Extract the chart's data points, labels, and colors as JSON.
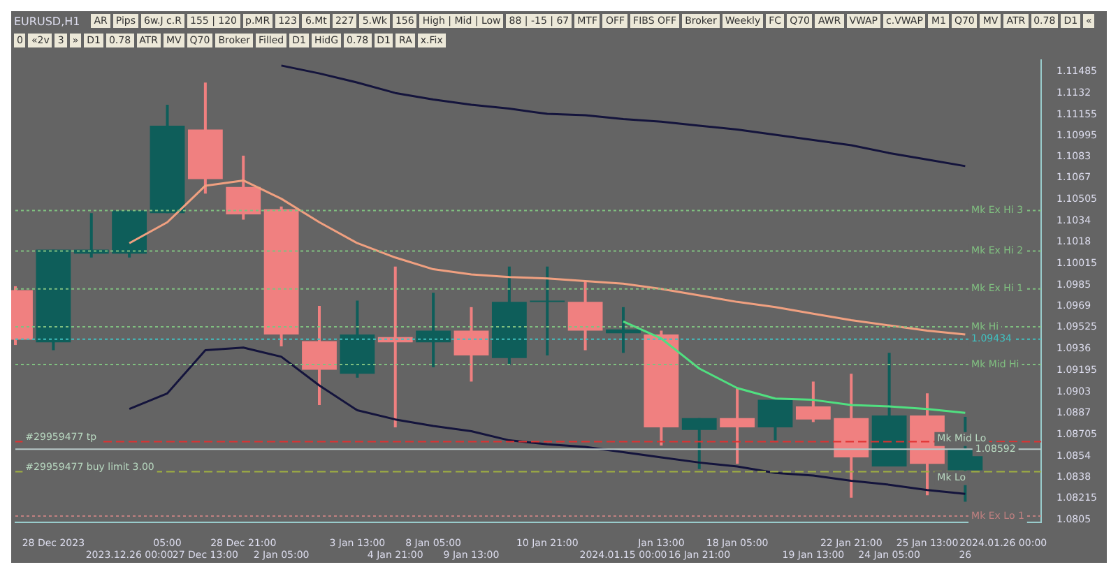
{
  "chart_data": {
    "type": "candlestick",
    "title": "EURUSD,H1",
    "categories": [
      null,
      "28 Dec 2023",
      null,
      "2023.12.26 00:00",
      "05:00",
      "27 Dec 13:00",
      "28 Dec 21:00",
      "2 Jan 05:00",
      null,
      "3 Jan 13:00",
      "4 Jan 21:00",
      "8 Jan 05:00",
      "9 Jan 13:00",
      null,
      "10 Jan 21:00",
      null,
      "2024.01.15 00:00",
      "Jan 13:00",
      "16 Jan 21:00",
      "18 Jan 05:00",
      null,
      "19 Jan 13:00",
      "22 Jan 21:00",
      "24 Jan 05:00",
      "25 Jan 13:00",
      "26",
      "2024.01.26 00:00",
      null
    ],
    "ohlc": [
      [
        1.0981,
        1.0984,
        1.0939,
        1.0943
      ],
      [
        1.0941,
        1.1012,
        1.0935,
        1.1012
      ],
      [
        1.1009,
        1.104,
        1.1006,
        1.1012
      ],
      [
        1.1009,
        1.1042,
        1.1006,
        1.1042
      ],
      [
        1.104,
        1.1123,
        1.104,
        1.1107
      ],
      [
        1.1104,
        1.114,
        1.1055,
        1.1066
      ],
      [
        1.106,
        1.1084,
        1.1035,
        1.1039
      ],
      [
        1.1043,
        1.1045,
        1.0938,
        1.0947
      ],
      [
        1.0942,
        1.0969,
        1.0893,
        1.092
      ],
      [
        1.0917,
        1.0973,
        1.0914,
        1.0947
      ],
      [
        1.0945,
        1.0999,
        1.0876,
        1.0941
      ],
      [
        1.0941,
        1.0979,
        1.0922,
        1.095
      ],
      [
        1.095,
        1.0968,
        1.0911,
        1.0931
      ],
      [
        1.0929,
        1.0999,
        1.0924,
        1.0972
      ],
      [
        1.0972,
        1.0999,
        1.0931,
        1.0973
      ],
      [
        1.0972,
        1.0988,
        1.0935,
        1.095
      ],
      [
        1.0948,
        1.0968,
        1.0933,
        1.0951
      ],
      [
        1.0947,
        1.095,
        1.0862,
        1.0876
      ],
      [
        1.0874,
        1.0883,
        1.0844,
        1.0883
      ],
      [
        1.0883,
        1.0906,
        1.0848,
        1.0876
      ],
      [
        1.0876,
        1.0897,
        1.0866,
        1.0897
      ],
      [
        1.0892,
        1.0911,
        1.088,
        1.0882
      ],
      [
        1.0883,
        1.0917,
        1.0822,
        1.0853
      ],
      [
        1.0846,
        1.0933,
        1.0846,
        1.0885
      ],
      [
        1.0885,
        1.0902,
        1.0824,
        1.0848
      ],
      [
        1.0843,
        1.0884,
        1.0819,
        1.0859
      ],
      null,
      null
    ],
    "colors": [
      "#f08080",
      "#0e5e5a",
      "#0e5e5a",
      "#0e5e5a",
      "#0e5e5a",
      "#f08080",
      "#f08080",
      "#f08080",
      "#f08080",
      "#0e5e5a",
      "#f08080",
      "#0e5e5a",
      "#f08080",
      "#0e5e5a",
      "#0e5e5a",
      "#f08080",
      "#0e5e5a",
      "#f08080",
      "#0e5e5a",
      "#f08080",
      "#0e5e5a",
      "#f08080",
      "#f08080",
      "#0e5e5a",
      "#f08080",
      "#0e5e5a",
      null,
      null
    ],
    "series": [
      {
        "type": "line",
        "color": "#f0a080",
        "values": [
          null,
          null,
          null,
          1.1017,
          1.1033,
          1.1061,
          1.1065,
          1.1051,
          1.1033,
          1.1017,
          1.1006,
          1.0997,
          1.0993,
          1.0991,
          1.099,
          1.0988,
          1.0986,
          1.0982,
          1.0977,
          1.0972,
          1.0968,
          1.0963,
          1.0958,
          1.0954,
          1.095,
          1.0947,
          null,
          null
        ]
      },
      {
        "type": "line",
        "color": "#14143c",
        "values": [
          null,
          null,
          null,
          1.089,
          1.0902,
          1.0935,
          1.0937,
          1.093,
          1.0908,
          1.0889,
          1.0882,
          1.0877,
          1.0873,
          1.0866,
          1.0863,
          1.0861,
          1.0857,
          1.0853,
          1.0849,
          1.0846,
          1.0841,
          1.0839,
          1.0835,
          1.0832,
          1.0828,
          1.0825,
          null,
          null
        ]
      },
      {
        "type": "line",
        "color": "#14143c",
        "values": [
          null,
          null,
          null,
          null,
          null,
          null,
          null,
          1.1153,
          1.1147,
          1.114,
          1.1132,
          1.1127,
          1.1123,
          1.112,
          1.1116,
          1.1115,
          1.1112,
          1.111,
          1.1107,
          1.1104,
          1.11,
          1.1096,
          1.1092,
          1.1086,
          1.1081,
          1.1076,
          null,
          null
        ]
      },
      {
        "type": "line",
        "color": "#50e080",
        "values": [
          null,
          null,
          null,
          null,
          null,
          null,
          null,
          null,
          null,
          null,
          null,
          null,
          null,
          null,
          null,
          null,
          1.0957,
          1.0944,
          1.0921,
          1.0906,
          1.0898,
          1.0897,
          1.0893,
          1.0892,
          1.089,
          1.0887,
          null,
          null
        ]
      }
    ],
    "ylim": [
      1.0803,
      1.1157
    ],
    "yticks": [
      1.11485,
      1.1132,
      1.11155,
      1.10995,
      1.1083,
      1.1067,
      1.10505,
      1.1034,
      1.1018,
      1.10015,
      1.0985,
      1.0969,
      1.09525,
      1.0936,
      1.09195,
      1.0903,
      1.0887,
      1.08705,
      1.0854,
      1.0838,
      1.08215,
      1.0805
    ],
    "ref_lines": [
      {
        "axis": "y",
        "value": 1.0865,
        "color": "#e03030",
        "line_style": "dashed"
      },
      {
        "axis": "y",
        "value": 1.1042,
        "color": "#80c080",
        "line_style": "dotted",
        "label": "Mk Ex Hi 3"
      },
      {
        "axis": "y",
        "value": 1.1011,
        "color": "#80c080",
        "line_style": "dotted",
        "label": "Mk Ex Hi 2"
      },
      {
        "axis": "y",
        "value": 1.0982,
        "color": "#80c080",
        "line_style": "dotted",
        "label": "Mk Ex Hi 1"
      },
      {
        "axis": "y",
        "value": 1.0953,
        "color": "#80c080",
        "line_style": "dotted",
        "label": "Mk Hi"
      },
      {
        "axis": "y",
        "value": 1.0924,
        "color": "#80c080",
        "line_style": "dotted",
        "label": "Mk Mid Hi"
      },
      {
        "axis": "y",
        "value": 1.0808,
        "color": "#c08080",
        "line_style": "dotted",
        "label": "Mk Ex Lo 1"
      },
      {
        "axis": "y",
        "value": 1.09434,
        "color": "#40c0c0",
        "line_style": "dotted",
        "label": "1.09434"
      },
      {
        "axis": "y",
        "value": 1.0842,
        "color": "#a0b040",
        "line_style": "dashed"
      },
      {
        "axis": "y",
        "value": 1.08592,
        "color": "#b8c8c8",
        "line_style": "solid"
      }
    ],
    "annotations": [
      "AR",
      "Pips",
      "6w.J c.R",
      "155 | 120",
      "p.MR",
      "123",
      "6.Mt",
      "227",
      "5.Wk",
      "156",
      "High | Mid | Low",
      "88 | -15 | 67",
      "MTF",
      "OFF",
      "FIBS OFF",
      "Broker",
      "Weekly",
      "FC",
      "Q70",
      "AWR",
      "VWAP",
      "c.VWAP",
      "M1",
      "Q70",
      "MV",
      "ATR",
      "0.78",
      "D1",
      "«",
      "0",
      "«2v",
      "3",
      "»",
      "D1",
      "0.78",
      "ATR",
      "MV",
      "Q70",
      "Broker",
      "Filled",
      "D1",
      "HidG",
      "0.78",
      "D1",
      "RA",
      "x.Fix",
      {
        "text": "Mk Mid Lo",
        "x": "26",
        "y": 1.0867
      },
      {
        "text": "Mk Lo",
        "x": "26",
        "y": 1.0837
      },
      {
        "text": "#29959477 tp",
        "x": "28 Dec 2023",
        "y": 1.0868
      },
      {
        "text": "#29959477 buy limit 3.00",
        "x": "28 Dec 2023",
        "y": 1.0845
      },
      {
        "text": "1.08592",
        "x": "2024.01.26 00:00",
        "y": 1.08592
      }
    ],
    "grid": false,
    "legend": false
  }
}
